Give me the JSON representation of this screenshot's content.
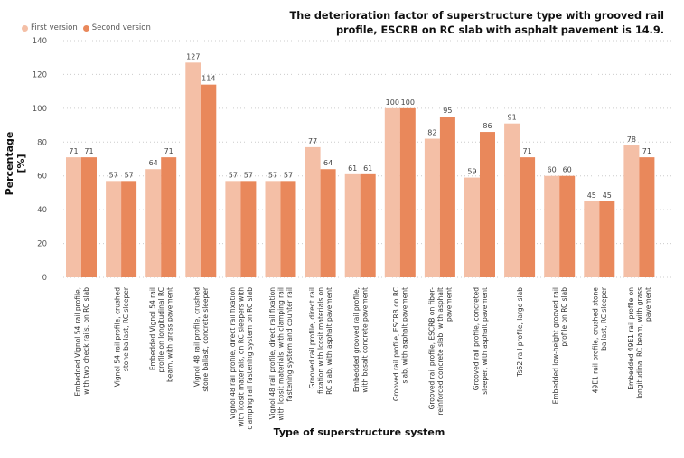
{
  "colors": {
    "first_version": "#f4bfa6",
    "second_version": "#e9885b",
    "grid": "#cccccc"
  },
  "chart_data": {
    "type": "bar",
    "title": "",
    "annotation": "The deterioration factor of superstructure type with grooved rail profile, ESCRB on RC slab with asphalt pavement is 14.9.",
    "xlabel": "Type of superstructure system",
    "ylabel": "Percentage [%]",
    "ylim": [
      0,
      140
    ],
    "yticks": [
      0,
      20,
      40,
      60,
      80,
      100,
      120,
      140
    ],
    "grid": true,
    "legend_position": "top-left",
    "categories": [
      [
        "Embedded Vignol 54 rail profile,",
        "with two check rails, on RC slab"
      ],
      [
        "Vignol 54 rail profile, crushed",
        "stone ballast, RC sleeper"
      ],
      [
        "Embedded Vignol 54 rail",
        "profile on longitudinal RC",
        "beam, with grass pavement"
      ],
      [
        "Vignol 48 rail profile, crushed",
        "stone ballast, concrete sleeper"
      ],
      [
        "Vignol 48 rail profile, direct rail fixation",
        "with Icosit materials, on RC sleepers with",
        "clamping rail fastening system on RC slab"
      ],
      [
        "Vignol 48 rail profile, direct rail fixation",
        "with Icosit materials, with clamping rail",
        "fastening system and counter rail"
      ],
      [
        "Grooved rail profile, direct rail",
        "fixation with Icosit materials on",
        "RC slab, with asphalt pavement"
      ],
      [
        "Embedded grooved rail profile,",
        "with basalt concrete pavement"
      ],
      [
        "Grooved rail profile, ESCRB on RC",
        "slab, with asphalt pavement"
      ],
      [
        "Grooved rail profile, ESCRB on fiber-",
        "reinforced concrete slab, with asphalt",
        "pavement"
      ],
      [
        "Grooved rail profile, concreted",
        "sleeper, with asphalt pavement"
      ],
      [
        "Ts52 rail profile, large slab"
      ],
      [
        "Embedded low-height grooved rail",
        "profile on RC slab"
      ],
      [
        "49E1 rail profile, crushed stone",
        "ballast, RC sleeper"
      ],
      [
        "Embedded 49E1 rail profile on",
        "longitudinal RC beam, with grass",
        "pavement"
      ]
    ],
    "series": [
      {
        "name": "First version",
        "values": [
          71,
          57,
          64,
          127,
          57,
          57,
          77,
          61,
          100,
          82,
          59,
          91,
          60,
          45,
          78
        ]
      },
      {
        "name": "Second version",
        "values": [
          71,
          57,
          71,
          114,
          57,
          57,
          64,
          61,
          100,
          95,
          86,
          71,
          60,
          45,
          71
        ]
      }
    ]
  }
}
